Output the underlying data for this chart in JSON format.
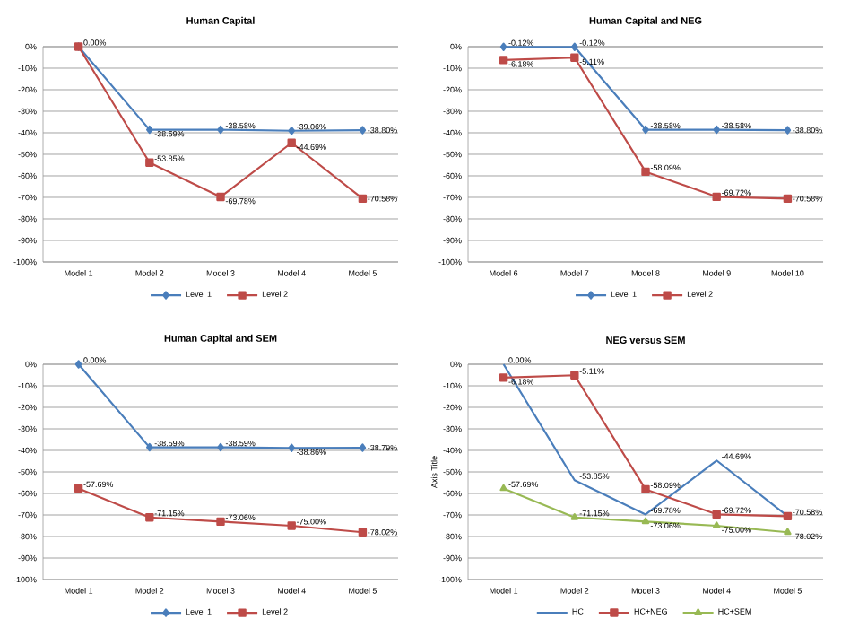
{
  "chart_data": [
    {
      "type": "line",
      "title": "Human Capital",
      "categories": [
        "Model 1",
        "Model 2",
        "Model 3",
        "Model 4",
        "Model 5"
      ],
      "ylim": [
        -100,
        0
      ],
      "yticks": [
        {
          "value": -100,
          "label": "-100%"
        },
        {
          "value": -90,
          "label": "-90%"
        },
        {
          "value": -80,
          "label": "-80%"
        },
        {
          "value": -70,
          "label": "-70%"
        },
        {
          "value": -60,
          "label": "-60%"
        },
        {
          "value": -50,
          "label": "-50%"
        },
        {
          "value": -40,
          "label": "-40%"
        },
        {
          "value": -30,
          "label": "-30%"
        },
        {
          "value": -20,
          "label": "-20%"
        },
        {
          "value": -10,
          "label": "-10%"
        },
        {
          "value": 0,
          "label": "0%"
        }
      ],
      "grid": "y",
      "legend": "bottom",
      "series": [
        {
          "name": "Level 1",
          "color": "#4a7ebb",
          "marker": "diamond",
          "values": [
            0,
            -38.59,
            -38.58,
            -39.06,
            -38.8
          ],
          "value_labels": [
            null,
            "-38.59%",
            "-38.58%",
            "-39.06%",
            "-38.80%"
          ]
        },
        {
          "name": "Level 2",
          "color": "#be4b48",
          "marker": "square",
          "values": [
            0,
            -53.85,
            -69.78,
            -44.69,
            -70.58
          ],
          "value_labels": [
            "0.00%",
            "-53.85%",
            "-69.78%",
            "-44.69%",
            "-70.58%"
          ]
        }
      ]
    },
    {
      "type": "line",
      "title": "Human Capital and NEG",
      "categories": [
        "Model 6",
        "Model 7",
        "Model 8",
        "Model 9",
        "Model 10"
      ],
      "ylim": [
        -100,
        0
      ],
      "yticks": [
        {
          "value": -100,
          "label": "-100%"
        },
        {
          "value": -90,
          "label": "-90%"
        },
        {
          "value": -80,
          "label": "-80%"
        },
        {
          "value": -70,
          "label": "-70%"
        },
        {
          "value": -60,
          "label": "-60%"
        },
        {
          "value": -50,
          "label": "-50%"
        },
        {
          "value": -40,
          "label": "-40%"
        },
        {
          "value": -30,
          "label": "-30%"
        },
        {
          "value": -20,
          "label": "-20%"
        },
        {
          "value": -10,
          "label": "-10%"
        },
        {
          "value": 0,
          "label": "0%"
        }
      ],
      "grid": "y",
      "legend": "bottom",
      "series": [
        {
          "name": "Level 1",
          "color": "#4a7ebb",
          "marker": "diamond",
          "values": [
            -0.12,
            -0.12,
            -38.58,
            -38.58,
            -38.8
          ],
          "value_labels": [
            "-0.12%",
            "-0.12%",
            "-38.58%",
            "-38.58%",
            "-38.80%"
          ]
        },
        {
          "name": "Level 2",
          "color": "#be4b48",
          "marker": "square",
          "values": [
            -6.18,
            -5.11,
            -58.09,
            -69.72,
            -70.58
          ],
          "value_labels": [
            "-6.18%",
            "-5.11%",
            "-58.09%",
            "-69.72%",
            "-70.58%"
          ]
        }
      ]
    },
    {
      "type": "line",
      "title": "Human Capital and SEM",
      "categories": [
        "Model 1",
        "Model 2",
        "Model 3",
        "Model 4",
        "Model 5"
      ],
      "ylim": [
        -100,
        0
      ],
      "yticks": [
        {
          "value": -100,
          "label": "-100%"
        },
        {
          "value": -90,
          "label": "-90%"
        },
        {
          "value": -80,
          "label": "-80%"
        },
        {
          "value": -70,
          "label": "-70%"
        },
        {
          "value": -60,
          "label": "-60%"
        },
        {
          "value": -50,
          "label": "-50%"
        },
        {
          "value": -40,
          "label": "-40%"
        },
        {
          "value": -30,
          "label": "-30%"
        },
        {
          "value": -20,
          "label": "-20%"
        },
        {
          "value": -10,
          "label": "-10%"
        },
        {
          "value": 0,
          "label": "0%"
        }
      ],
      "grid": "y",
      "legend": "bottom",
      "series": [
        {
          "name": "Level 1",
          "color": "#4a7ebb",
          "marker": "diamond",
          "values": [
            0,
            -38.59,
            -38.59,
            -38.86,
            -38.79
          ],
          "value_labels": [
            "0.00%",
            "-38.59%",
            "-38.59%",
            "-38.86%",
            "-38.79%"
          ]
        },
        {
          "name": "Level 2",
          "color": "#be4b48",
          "marker": "square",
          "values": [
            -57.69,
            -71.15,
            -73.06,
            -75.0,
            -78.02
          ],
          "value_labels": [
            "-57.69%",
            "-71.15%",
            "-73.06%",
            "-75.00%",
            "-78.02%"
          ]
        }
      ]
    },
    {
      "type": "line",
      "title": "NEG versus SEM",
      "ylabel": "Axis Title",
      "categories": [
        "Model 1",
        "Model 2",
        "Model 3",
        "Model 4",
        "Model 5"
      ],
      "ylim": [
        -100,
        0
      ],
      "yticks": [
        {
          "value": -100,
          "label": "-100%"
        },
        {
          "value": -90,
          "label": "-90%"
        },
        {
          "value": -80,
          "label": "-80%"
        },
        {
          "value": -70,
          "label": "-70%"
        },
        {
          "value": -60,
          "label": "-60%"
        },
        {
          "value": -50,
          "label": "-50%"
        },
        {
          "value": -40,
          "label": "-40%"
        },
        {
          "value": -30,
          "label": "-30%"
        },
        {
          "value": -20,
          "label": "-20%"
        },
        {
          "value": -10,
          "label": "-10%"
        },
        {
          "value": 0,
          "label": "0%"
        }
      ],
      "grid": "y",
      "legend": "bottom",
      "series": [
        {
          "name": "HC",
          "color": "#4a7ebb",
          "marker": "none",
          "values": [
            0,
            -53.85,
            -69.78,
            -44.69,
            -70.58
          ],
          "value_labels": [
            "0.00%",
            "-53.85%",
            "-69.78%",
            "-44.69%",
            null
          ]
        },
        {
          "name": "HC+NEG",
          "color": "#be4b48",
          "marker": "square",
          "values": [
            -6.18,
            -5.11,
            -58.09,
            -69.72,
            -70.58
          ],
          "value_labels": [
            "-6.18%",
            "-5.11%",
            "-58.09%",
            "-69.72%",
            "-70.58%"
          ]
        },
        {
          "name": "HC+SEM",
          "color": "#98b954",
          "marker": "triangle",
          "values": [
            -57.69,
            -71.15,
            -73.06,
            -75.0,
            -78.02
          ],
          "value_labels": [
            "-57.69%",
            "-71.15%",
            "-73.06%",
            "-75.00%",
            "-78.02%"
          ]
        }
      ]
    }
  ]
}
